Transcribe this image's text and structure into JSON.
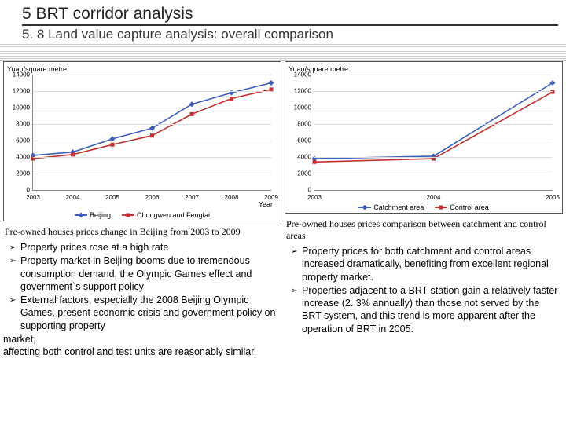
{
  "header": {
    "title": "5 BRT corridor analysis",
    "subtitle": "5. 8  Land value capture analysis: overall comparison"
  },
  "left_chart": {
    "type": "line",
    "ylabel": "Yuan/square metre",
    "xlabel": "Year",
    "categories": [
      "2003",
      "2004",
      "2005",
      "2006",
      "2007",
      "2008",
      "2009"
    ],
    "ylim": [
      0,
      14000
    ],
    "ytick_step": 2000,
    "background_color": "#ffffff",
    "grid_color": "#dddddd",
    "series": [
      {
        "name": "Beijing",
        "color": "#3b5fbf",
        "marker": "diamond",
        "values": [
          4200,
          4600,
          6200,
          7500,
          10400,
          11800,
          13000
        ]
      },
      {
        "name": "Chongwen and Fengtai",
        "color": "#c23030",
        "marker": "square",
        "values": [
          3800,
          4300,
          5500,
          6600,
          9200,
          11100,
          12200
        ]
      }
    ]
  },
  "right_chart": {
    "type": "line",
    "ylabel": "Yuan/square metre",
    "xlabel": "",
    "categories": [
      "2003",
      "2004",
      "2005"
    ],
    "ylim": [
      0,
      14000
    ],
    "ytick_step": 2000,
    "background_color": "#ffffff",
    "grid_color": "#dddddd",
    "series": [
      {
        "name": "Catchment area",
        "color": "#3b5fbf",
        "marker": "diamond",
        "values": [
          3800,
          4100,
          13000
        ]
      },
      {
        "name": "Control area",
        "color": "#c23030",
        "marker": "square",
        "values": [
          3400,
          3800,
          11900
        ]
      }
    ]
  },
  "left_caption": "Pre-owned houses prices change in Beijing from 2003 to 2009",
  "right_caption": "Pre-owned houses prices comparison between catchment and control areas",
  "left_bullets": [
    "Property prices rose at a high rate",
    "Property market in Beijing booms due to tremendous consumption demand, the Olympic Games effect and government`s support policy",
    "External factors, especially the 2008 Beijing Olympic Games, present economic crisis and government policy on supporting property"
  ],
  "left_tail": "market,\n    affecting both control and test units are reasonably similar.",
  "right_bullets": [
    "Property prices for both catchment and control areas increased dramatically, benefiting from excellent regional property market.",
    "Properties adjacent to a BRT station gain a relatively faster increase (2. 3% annually) than those not served by the BRT system, and this trend is more apparent after the operation of BRT in 2005."
  ]
}
